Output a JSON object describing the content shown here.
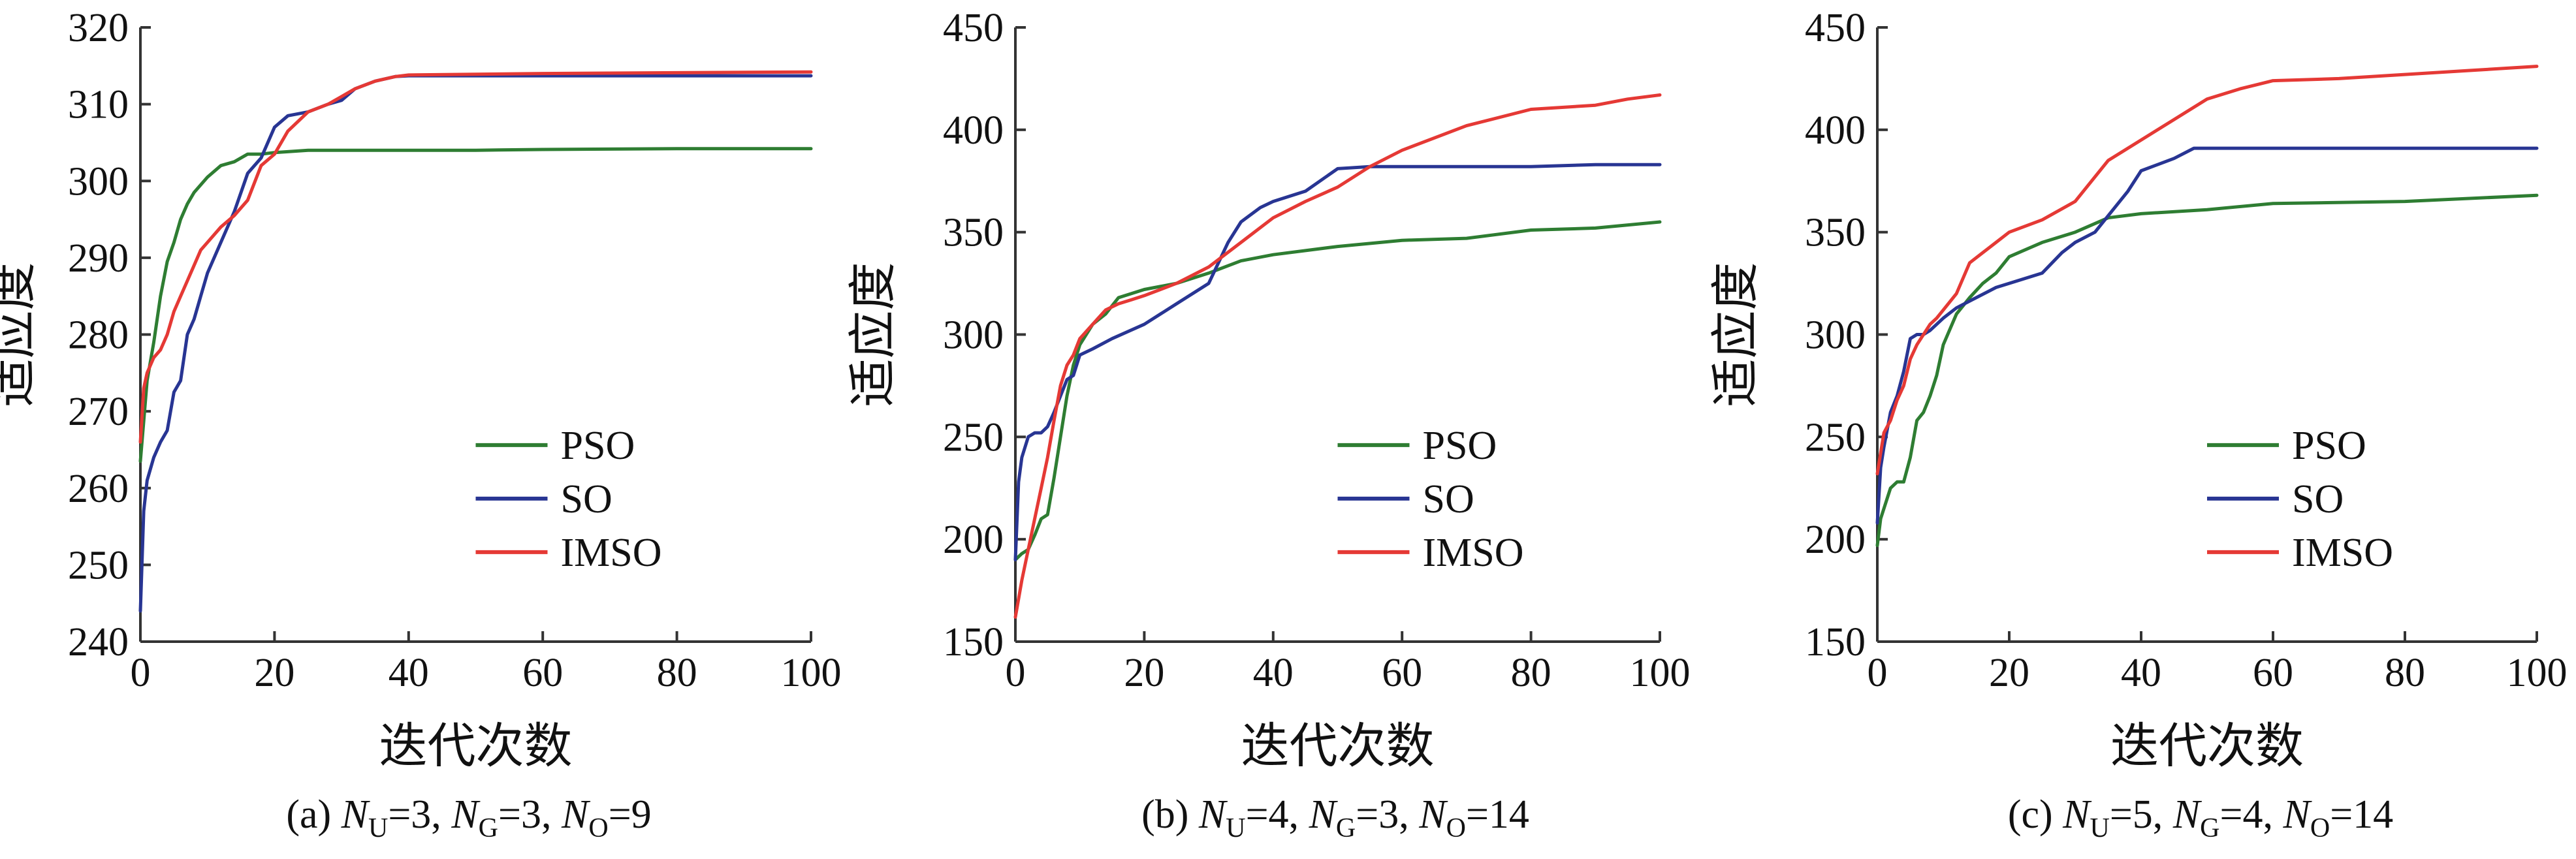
{
  "colors": {
    "PSO": "#2e7d32",
    "SO": "#283593",
    "IMSO": "#e53935",
    "axis": "#333333"
  },
  "chart_data": [
    {
      "type": "line",
      "panel": "(a)",
      "caption": {
        "prefix": "(a) ",
        "parts": [
          {
            "var": "N",
            "sub": "U",
            "val": "=3, "
          },
          {
            "var": "N",
            "sub": "G",
            "val": "=3, "
          },
          {
            "var": "N",
            "sub": "O",
            "val": "=9"
          }
        ]
      },
      "xlabel": "迭代次数",
      "ylabel": "适应度",
      "xlim": [
        0,
        100
      ],
      "ylim": [
        240,
        320
      ],
      "xticks": [
        "0",
        "20",
        "40",
        "60",
        "80",
        "100"
      ],
      "yticks": [
        "240",
        "250",
        "260",
        "270",
        "280",
        "290",
        "300",
        "310",
        "320"
      ],
      "legend_position": "lower-right",
      "series": [
        {
          "name": "PSO",
          "x": [
            0,
            1,
            2,
            3,
            4,
            5,
            6,
            7,
            8,
            10,
            12,
            14,
            16,
            18,
            20,
            25,
            30,
            40,
            50,
            60,
            80,
            100
          ],
          "y": [
            263.5,
            274,
            279,
            285,
            289.5,
            292,
            295,
            297,
            298.5,
            300.5,
            302,
            302.5,
            303.5,
            303.5,
            303.7,
            304,
            304,
            304,
            304,
            304.1,
            304.2,
            304.2
          ]
        },
        {
          "name": "SO",
          "x": [
            0,
            0.5,
            1,
            2,
            3,
            4,
            5,
            6,
            7,
            8,
            9,
            10,
            12,
            14,
            16,
            18,
            20,
            22,
            25,
            28,
            30,
            32,
            35,
            38,
            40,
            50,
            60,
            80,
            100
          ],
          "y": [
            244,
            257,
            261,
            264,
            266,
            267.5,
            272.5,
            274,
            280,
            282,
            285,
            288,
            292,
            296,
            301,
            303,
            307,
            308.5,
            309,
            310,
            310.5,
            312,
            313,
            313.6,
            313.7,
            313.7,
            313.7,
            313.7,
            313.7
          ]
        },
        {
          "name": "IMSO",
          "x": [
            0,
            0.5,
            1,
            2,
            3,
            4,
            5,
            6,
            7,
            8,
            9,
            10,
            12,
            14,
            16,
            18,
            20,
            22,
            25,
            28,
            30,
            32,
            35,
            38,
            40,
            50,
            60,
            80,
            100
          ],
          "y": [
            266,
            273,
            275,
            277,
            278,
            280,
            283,
            285,
            287,
            289,
            291,
            292,
            294,
            295.5,
            297.5,
            302,
            303.5,
            306.5,
            309,
            310,
            311,
            312,
            313,
            313.6,
            313.8,
            313.9,
            314,
            314.1,
            314.2
          ]
        }
      ]
    },
    {
      "type": "line",
      "panel": "(b)",
      "caption": {
        "prefix": "(b) ",
        "parts": [
          {
            "var": "N",
            "sub": "U",
            "val": "=4, "
          },
          {
            "var": "N",
            "sub": "G",
            "val": "=3, "
          },
          {
            "var": "N",
            "sub": "O",
            "val": "=14"
          }
        ]
      },
      "xlabel": "迭代次数",
      "ylabel": "适应度",
      "xlim": [
        0,
        100
      ],
      "ylim": [
        150,
        450
      ],
      "xticks": [
        "0",
        "20",
        "40",
        "60",
        "80",
        "100"
      ],
      "yticks": [
        "150",
        "200",
        "250",
        "300",
        "350",
        "400",
        "450"
      ],
      "legend_position": "lower-right",
      "series": [
        {
          "name": "PSO",
          "x": [
            0,
            1,
            2,
            3,
            4,
            5,
            6,
            7,
            8,
            9,
            10,
            12,
            14,
            16,
            18,
            20,
            25,
            30,
            35,
            40,
            50,
            60,
            70,
            80,
            90,
            100
          ],
          "y": [
            190,
            193,
            195,
            202,
            210,
            212,
            230,
            250,
            270,
            285,
            295,
            305,
            310,
            318,
            320,
            322,
            325,
            330,
            336,
            339,
            343,
            346,
            347,
            351,
            352,
            355
          ]
        },
        {
          "name": "SO",
          "x": [
            0,
            0.5,
            1,
            2,
            3,
            4,
            5,
            6,
            7,
            8,
            9,
            10,
            12,
            15,
            20,
            25,
            30,
            33,
            35,
            38,
            40,
            45,
            50,
            55,
            60,
            70,
            80,
            90,
            100
          ],
          "y": [
            190,
            228,
            240,
            250,
            252,
            252,
            255,
            262,
            270,
            278,
            280,
            290,
            293,
            298,
            305,
            315,
            325,
            345,
            355,
            362,
            365,
            370,
            381,
            382,
            382,
            382,
            382,
            383,
            383
          ]
        },
        {
          "name": "IMSO",
          "x": [
            0,
            1,
            2,
            3,
            4,
            5,
            6,
            7,
            8,
            9,
            10,
            12,
            14,
            16,
            18,
            20,
            25,
            30,
            35,
            40,
            45,
            50,
            55,
            60,
            70,
            80,
            90,
            95,
            100
          ],
          "y": [
            162,
            180,
            195,
            210,
            225,
            240,
            258,
            275,
            285,
            290,
            298,
            305,
            312,
            315,
            317,
            319,
            325,
            333,
            345,
            357,
            365,
            372,
            382,
            390,
            402,
            410,
            412,
            415,
            417
          ]
        }
      ]
    },
    {
      "type": "line",
      "panel": "(c)",
      "caption": {
        "prefix": "(c) ",
        "parts": [
          {
            "var": "N",
            "sub": "U",
            "val": "=5, "
          },
          {
            "var": "N",
            "sub": "G",
            "val": "=4, "
          },
          {
            "var": "N",
            "sub": "O",
            "val": "=14"
          }
        ]
      },
      "xlabel": "迭代次数",
      "ylabel": "适应度",
      "xlim": [
        0,
        100
      ],
      "ylim": [
        150,
        450
      ],
      "xticks": [
        "0",
        "20",
        "40",
        "60",
        "80",
        "100"
      ],
      "yticks": [
        "150",
        "200",
        "250",
        "300",
        "350",
        "400",
        "450"
      ],
      "legend_position": "lower-right",
      "series": [
        {
          "name": "PSO",
          "x": [
            0,
            0.5,
            1,
            2,
            3,
            4,
            5,
            6,
            7,
            8,
            9,
            10,
            12,
            14,
            16,
            18,
            20,
            25,
            30,
            35,
            40,
            50,
            60,
            80,
            100
          ],
          "y": [
            197,
            210,
            215,
            225,
            228,
            228,
            240,
            258,
            262,
            270,
            280,
            295,
            310,
            318,
            325,
            330,
            338,
            345,
            350,
            357,
            359,
            361,
            364,
            365,
            368
          ]
        },
        {
          "name": "SO",
          "x": [
            0,
            0.5,
            1,
            2,
            3,
            4,
            5,
            6,
            7,
            8,
            10,
            12,
            15,
            18,
            20,
            25,
            28,
            30,
            33,
            35,
            38,
            40,
            45,
            48,
            50,
            60,
            80,
            100
          ],
          "y": [
            208,
            235,
            245,
            262,
            270,
            282,
            298,
            300,
            300,
            302,
            308,
            313,
            318,
            323,
            325,
            330,
            340,
            345,
            350,
            358,
            370,
            380,
            386,
            391,
            391,
            391,
            391,
            391
          ]
        },
        {
          "name": "IMSO",
          "x": [
            0,
            1,
            2,
            3,
            4,
            5,
            6,
            7,
            8,
            9,
            10,
            12,
            14,
            16,
            18,
            20,
            25,
            30,
            35,
            40,
            45,
            50,
            55,
            60,
            70,
            80,
            90,
            100
          ],
          "y": [
            232,
            252,
            258,
            268,
            275,
            288,
            295,
            300,
            305,
            308,
            312,
            320,
            335,
            340,
            345,
            350,
            356,
            365,
            385,
            395,
            405,
            415,
            420,
            424,
            425,
            427,
            429,
            431
          ]
        }
      ]
    }
  ]
}
